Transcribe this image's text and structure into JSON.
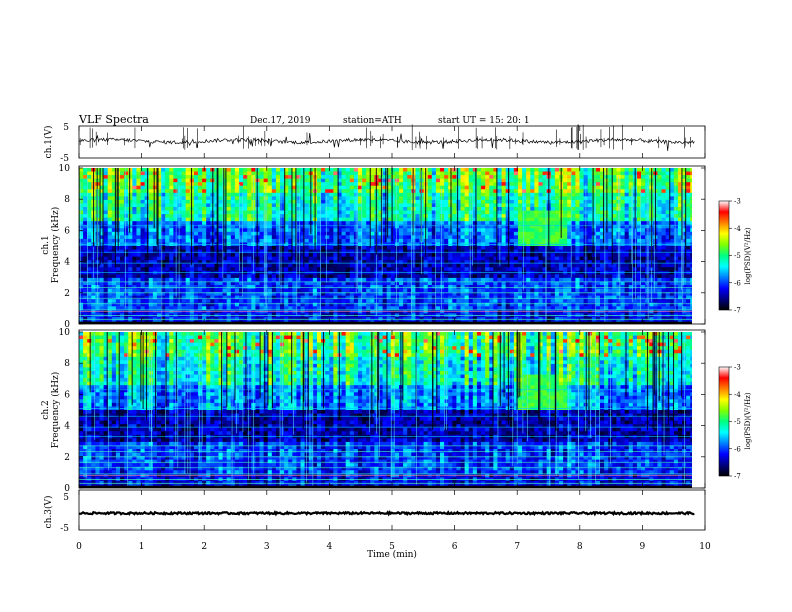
{
  "header": {
    "title": "VLF  Spectra",
    "date": "Dec.17, 2019",
    "station": "station=ATH",
    "start": "start  UT  =    15: 20: 1"
  },
  "chart_data": {
    "type": "heatmap",
    "panels": [
      {
        "id": "ch1-waveform",
        "type": "line",
        "ylabel": "ch.1(V)",
        "yticks": [
          "5",
          "-5"
        ],
        "ylim": [
          -5,
          5
        ]
      },
      {
        "id": "ch1-spectrogram",
        "type": "heatmap",
        "channel_label": "ch.1",
        "ylabel": "Frequency  (kHz)",
        "yticks": [
          "0",
          "2",
          "4",
          "6",
          "8",
          "10"
        ],
        "ylim": [
          0,
          10
        ],
        "colorbar": {
          "label": "log(PSD)(V²/Hz)",
          "ticks": [
            "-3",
            "-4",
            "-5",
            "-6",
            "-7"
          ],
          "range": [
            -7,
            -3
          ]
        }
      },
      {
        "id": "ch2-spectrogram",
        "type": "heatmap",
        "channel_label": "ch.2",
        "ylabel": "Frequency  (kHz)",
        "yticks": [
          "0",
          "2",
          "4",
          "6",
          "8",
          "10"
        ],
        "ylim": [
          0,
          10
        ],
        "colorbar": {
          "label": "log(PSD)(V²/Hz)",
          "ticks": [
            "-3",
            "-4",
            "-5",
            "-6",
            "-7"
          ],
          "range": [
            -7,
            -3
          ]
        }
      },
      {
        "id": "ch3-waveform",
        "type": "line",
        "ylabel": "ch.3(V)",
        "yticks": [
          "5",
          "-5"
        ],
        "ylim": [
          -5,
          5
        ]
      }
    ],
    "x": {
      "label": "Time  (min)",
      "ticks": [
        "0",
        "1",
        "2",
        "3",
        "4",
        "5",
        "6",
        "7",
        "8",
        "9",
        "10"
      ],
      "range": [
        0,
        10
      ],
      "data_end": 9.83
    },
    "colormap": [
      "#000000",
      "#00007f",
      "#0000ff",
      "#0080ff",
      "#00ffff",
      "#00ff80",
      "#80ff00",
      "#ffff00",
      "#ff8000",
      "#ff0000",
      "#ffffff"
    ]
  }
}
